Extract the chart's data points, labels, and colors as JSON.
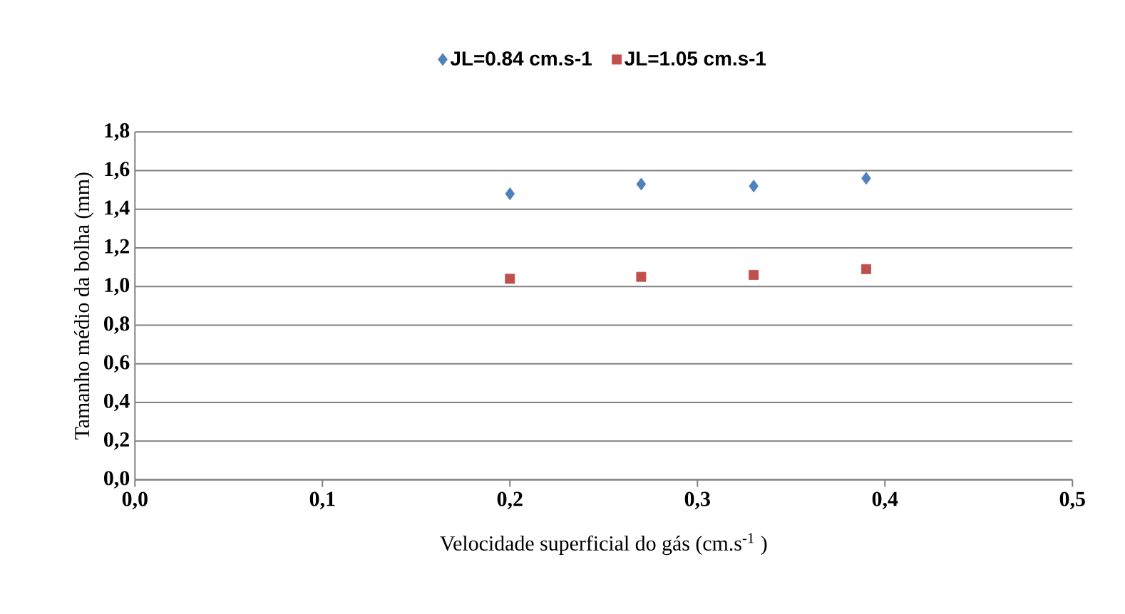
{
  "chart_data": {
    "type": "scatter",
    "xlabel": "Velocidade superficial do gás (cm.s$^{-1}$ )",
    "ylabel": "Tamanho médio da bolha  (mm)",
    "series": [
      {
        "name": "JL=0.84 cm.s-1",
        "color": "#4f81bd",
        "marker": "diamond",
        "x": [
          0.2,
          0.27,
          0.33,
          0.39
        ],
        "values": [
          1.48,
          1.53,
          1.52,
          1.56
        ]
      },
      {
        "name": "JL=1.05 cm.s-1",
        "color": "#c0504d",
        "marker": "square",
        "x": [
          0.2,
          0.27,
          0.33,
          0.39
        ],
        "values": [
          1.04,
          1.05,
          1.06,
          1.09
        ]
      }
    ],
    "xlim": [
      0,
      0.5
    ],
    "ylim": [
      0,
      1.8
    ],
    "xticks": [
      {
        "value": 0,
        "label": "0,0"
      },
      {
        "value": 0.1,
        "label": "0,1"
      },
      {
        "value": 0.2,
        "label": "0,2"
      },
      {
        "value": 0.3,
        "label": "0,3"
      },
      {
        "value": 0.4,
        "label": "0,4"
      },
      {
        "value": 0.5,
        "label": "0,5"
      }
    ],
    "yticks": [
      {
        "value": 0,
        "label": "0,0"
      },
      {
        "value": 0.2,
        "label": "0,2"
      },
      {
        "value": 0.4,
        "label": "0,4"
      },
      {
        "value": 0.6,
        "label": "0,6"
      },
      {
        "value": 0.8,
        "label": "0,8"
      },
      {
        "value": 1.0,
        "label": "1,0"
      },
      {
        "value": 1.2,
        "label": "1,2"
      },
      {
        "value": 1.4,
        "label": "1,4"
      },
      {
        "value": 1.6,
        "label": "1,6"
      },
      {
        "value": 1.8,
        "label": "1,8"
      }
    ],
    "grid": "y",
    "legend": "top"
  }
}
